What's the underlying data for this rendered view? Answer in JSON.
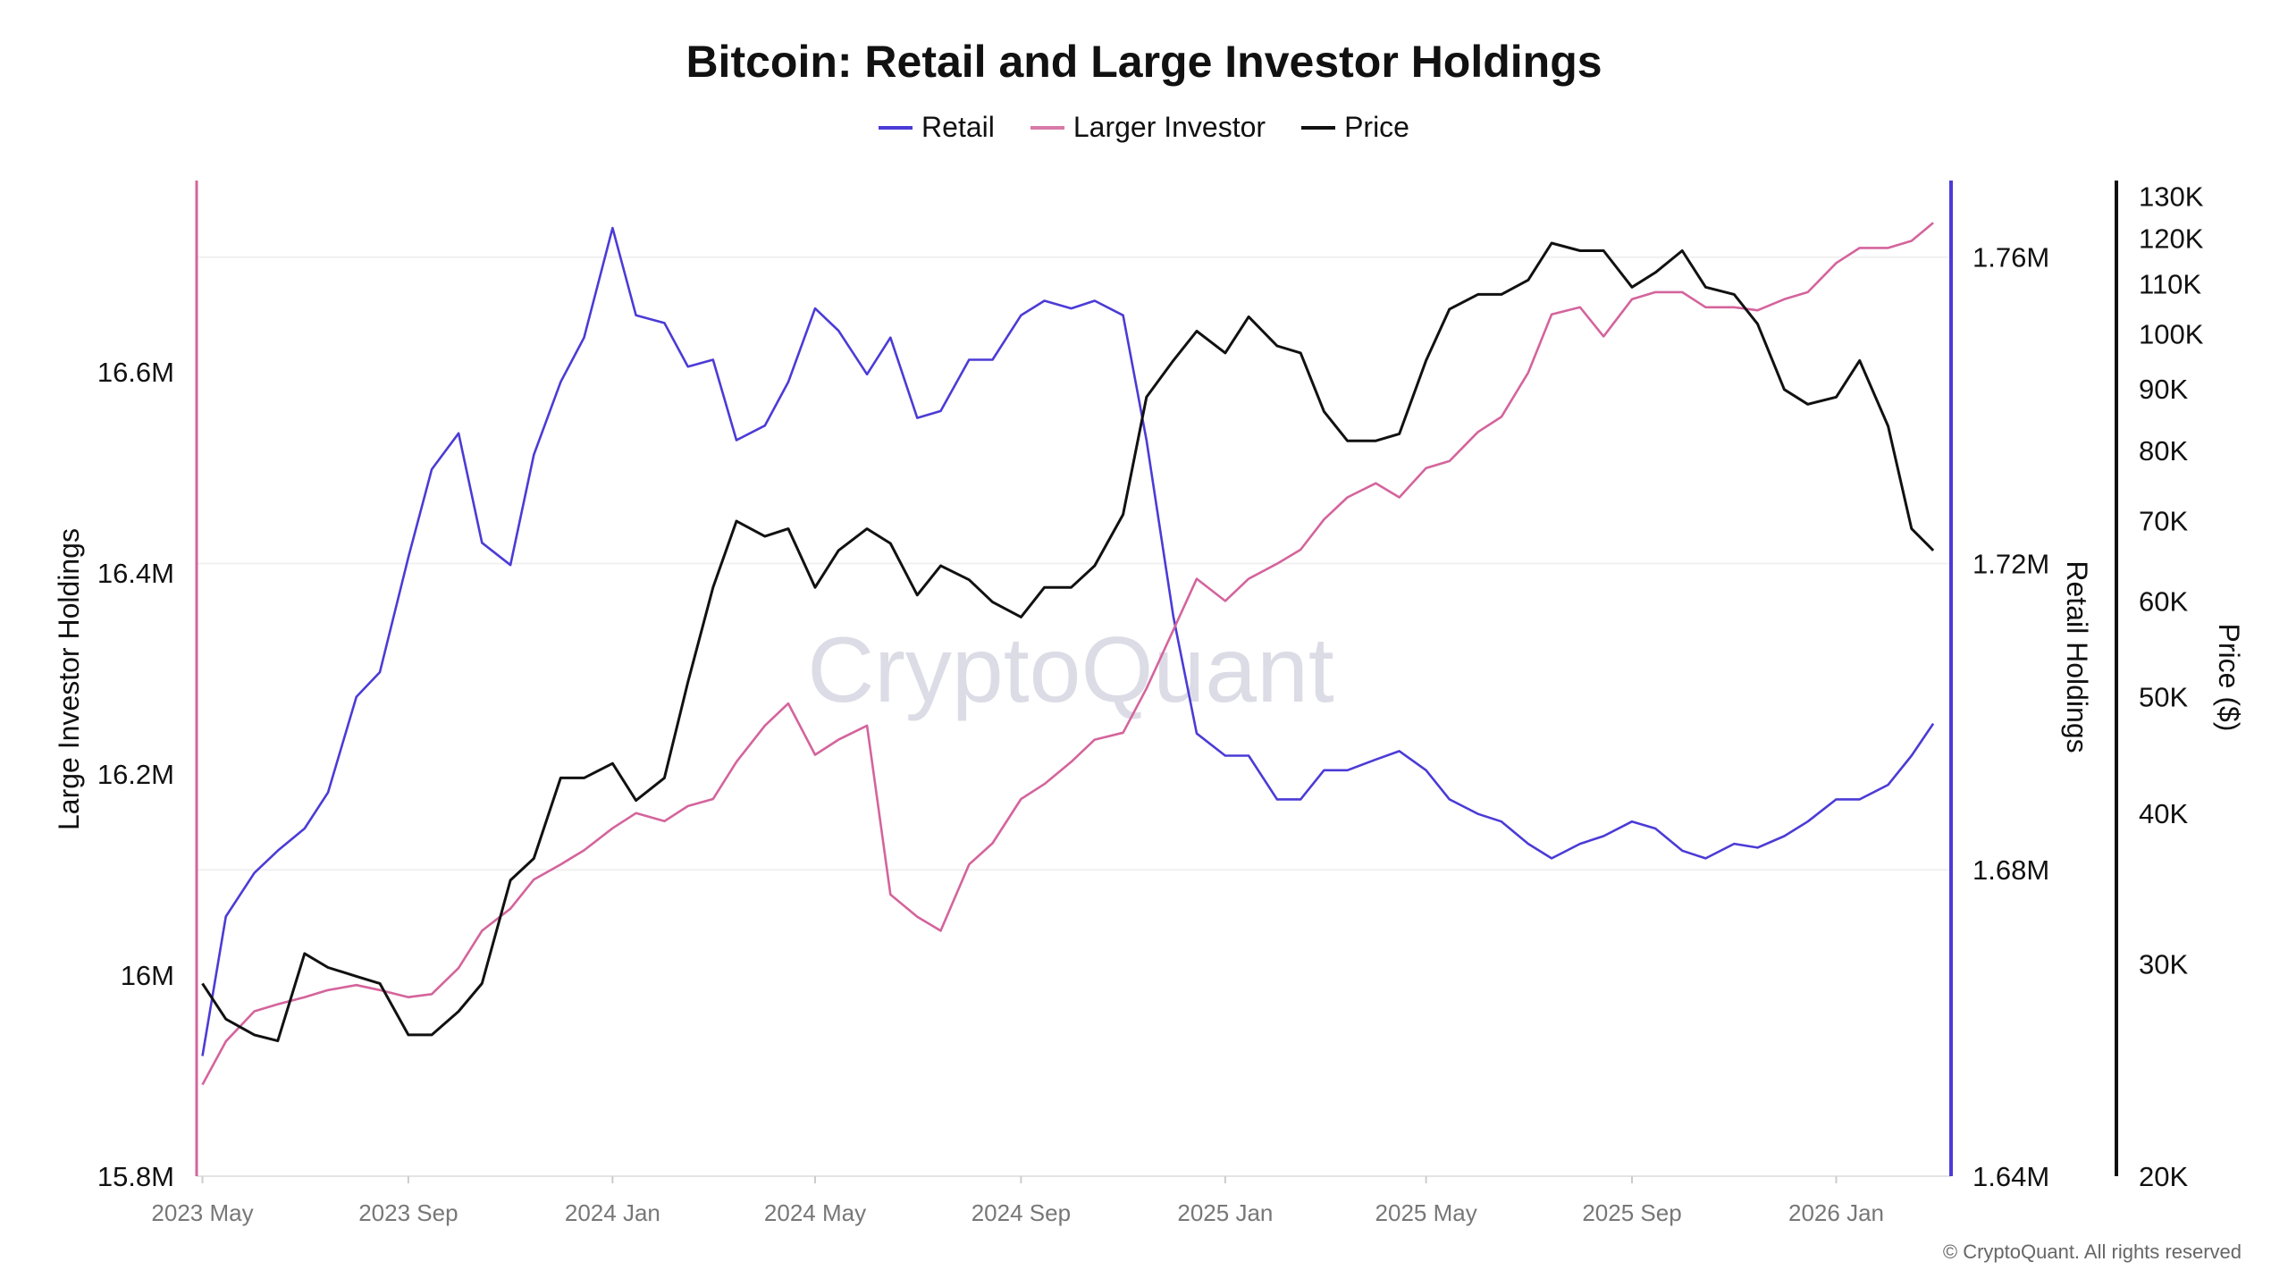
{
  "chart_data": {
    "type": "line",
    "title": "Bitcoin: Retail and Large Investor Holdings",
    "legend_placement": "top-center",
    "grid": "horizontal",
    "watermark": "CryptoQuant",
    "copyright": "© CryptoQuant. All rights reserved",
    "x_axis": {
      "type": "date",
      "range": [
        "2023-04-28",
        "2026-03-02"
      ],
      "ticks": [
        {
          "label": "2023 May",
          "date": "2023-05-01"
        },
        {
          "label": "2023 Sep",
          "date": "2023-09-01"
        },
        {
          "label": "2024 Jan",
          "date": "2024-01-01"
        },
        {
          "label": "2024 May",
          "date": "2024-05-01"
        },
        {
          "label": "2024 Sep",
          "date": "2024-09-01"
        },
        {
          "label": "2025 Jan",
          "date": "2025-01-01"
        },
        {
          "label": "2025 May",
          "date": "2025-05-01"
        },
        {
          "label": "2025 Sep",
          "date": "2025-09-01"
        },
        {
          "label": "2026 Jan",
          "date": "2026-01-01"
        }
      ]
    },
    "y_axes": {
      "left": {
        "label": "Large Investor Holdings",
        "range": [
          15.8,
          16.79
        ],
        "unit": "M",
        "color": "#d4649c",
        "ticks": [
          {
            "v": 15.8,
            "label": "15.8M"
          },
          {
            "v": 16.0,
            "label": "16M"
          },
          {
            "v": 16.2,
            "label": "16.2M"
          },
          {
            "v": 16.4,
            "label": "16.4M"
          },
          {
            "v": 16.6,
            "label": "16.6M"
          }
        ]
      },
      "right1": {
        "label": "Retail Holdings",
        "range": [
          1.64,
          1.77
        ],
        "unit": "M",
        "color": "#4b3bd6",
        "ticks": [
          {
            "v": 1.64,
            "label": "1.64M"
          },
          {
            "v": 1.68,
            "label": "1.68M"
          },
          {
            "v": 1.72,
            "label": "1.72M"
          },
          {
            "v": 1.76,
            "label": "1.76M"
          }
        ]
      },
      "right2": {
        "label": "Price ($)",
        "range": [
          20000,
          134000
        ],
        "scale": "log",
        "color": "#111111",
        "ticks": [
          {
            "v": 20000,
            "label": "20K"
          },
          {
            "v": 30000,
            "label": "30K"
          },
          {
            "v": 40000,
            "label": "40K"
          },
          {
            "v": 50000,
            "label": "50K"
          },
          {
            "v": 60000,
            "label": "60K"
          },
          {
            "v": 70000,
            "label": "70K"
          },
          {
            "v": 80000,
            "label": "80K"
          },
          {
            "v": 90000,
            "label": "90K"
          },
          {
            "v": 100000,
            "label": "100K"
          },
          {
            "v": 110000,
            "label": "110K"
          },
          {
            "v": 120000,
            "label": "120K"
          },
          {
            "v": 130000,
            "label": "130K"
          }
        ]
      }
    },
    "dates": [
      "2023-05-01",
      "2023-05-15",
      "2023-06-01",
      "2023-06-15",
      "2023-07-01",
      "2023-07-15",
      "2023-08-01",
      "2023-08-15",
      "2023-09-01",
      "2023-09-15",
      "2023-10-01",
      "2023-10-15",
      "2023-11-01",
      "2023-11-15",
      "2023-12-01",
      "2023-12-15",
      "2024-01-01",
      "2024-01-15",
      "2024-02-01",
      "2024-02-15",
      "2024-03-01",
      "2024-03-15",
      "2024-04-01",
      "2024-04-15",
      "2024-05-01",
      "2024-05-15",
      "2024-06-01",
      "2024-06-15",
      "2024-07-01",
      "2024-07-15",
      "2024-08-01",
      "2024-08-15",
      "2024-09-01",
      "2024-09-15",
      "2024-10-01",
      "2024-10-15",
      "2024-11-01",
      "2024-11-15",
      "2024-12-01",
      "2024-12-15",
      "2025-01-01",
      "2025-01-15",
      "2025-02-01",
      "2025-02-15",
      "2025-03-01",
      "2025-03-15",
      "2025-04-01",
      "2025-04-15",
      "2025-05-01",
      "2025-05-15",
      "2025-06-01",
      "2025-06-15",
      "2025-07-01",
      "2025-07-15",
      "2025-08-01",
      "2025-08-15",
      "2025-09-01",
      "2025-09-15",
      "2025-10-01",
      "2025-10-15",
      "2025-11-01",
      "2025-11-15",
      "2025-12-01",
      "2025-12-15",
      "2026-01-01",
      "2026-01-15",
      "2026-02-01",
      "2026-02-15",
      "2026-02-28"
    ],
    "series": [
      {
        "name": "Retail",
        "axis": "right1",
        "color": "#4b3bd6",
        "unit": "M",
        "values": [
          1.6557,
          1.6739,
          1.6796,
          1.6825,
          1.6854,
          1.6901,
          1.7026,
          1.7058,
          1.7208,
          1.7323,
          1.737,
          1.7227,
          1.7198,
          1.7342,
          1.7437,
          1.7495,
          1.7638,
          1.7524,
          1.7514,
          1.7457,
          1.7466,
          1.7361,
          1.738,
          1.7437,
          1.7533,
          1.7504,
          1.7447,
          1.7495,
          1.739,
          1.7399,
          1.7466,
          1.7466,
          1.7524,
          1.7543,
          1.7533,
          1.7543,
          1.7524,
          1.7361,
          1.7131,
          1.6978,
          1.6949,
          1.6949,
          1.6892,
          1.6892,
          1.693,
          1.693,
          1.6944,
          1.6955,
          1.693,
          1.6892,
          1.6873,
          1.6863,
          1.6834,
          1.6815,
          1.6834,
          1.6844,
          1.6863,
          1.6854,
          1.6825,
          1.6815,
          1.6834,
          1.6829,
          1.6844,
          1.6863,
          1.6892,
          1.6892,
          1.6911,
          1.6949,
          1.6991
        ]
      },
      {
        "name": "Larger Investor",
        "axis": "left",
        "color": "#d4649c",
        "unit": "M",
        "values": [
          15.891,
          15.934,
          15.964,
          15.971,
          15.978,
          15.985,
          15.99,
          15.985,
          15.978,
          15.981,
          16.007,
          16.044,
          16.066,
          16.095,
          16.11,
          16.124,
          16.146,
          16.161,
          16.153,
          16.168,
          16.175,
          16.212,
          16.248,
          16.27,
          16.219,
          16.234,
          16.248,
          16.08,
          16.058,
          16.044,
          16.11,
          16.131,
          16.175,
          16.19,
          16.212,
          16.234,
          16.241,
          16.285,
          16.343,
          16.394,
          16.372,
          16.394,
          16.409,
          16.423,
          16.453,
          16.475,
          16.489,
          16.475,
          16.504,
          16.511,
          16.54,
          16.555,
          16.599,
          16.657,
          16.664,
          16.635,
          16.672,
          16.679,
          16.679,
          16.664,
          16.664,
          16.661,
          16.672,
          16.679,
          16.708,
          16.723,
          16.723,
          16.73,
          16.748
        ]
      },
      {
        "name": "Price",
        "axis": "right2",
        "color": "#111111",
        "unit": "$",
        "values": [
          28900,
          27000,
          26200,
          25900,
          30600,
          29800,
          29300,
          28900,
          26200,
          26200,
          27400,
          28900,
          35200,
          36700,
          42800,
          42800,
          44000,
          41000,
          42800,
          51400,
          61600,
          69900,
          67900,
          68900,
          61600,
          66100,
          68900,
          67000,
          60700,
          64200,
          62500,
          59900,
          58200,
          61600,
          61600,
          64200,
          70800,
          88600,
          95000,
          100500,
          96400,
          103300,
          97700,
          96400,
          86200,
          81500,
          81500,
          82600,
          95000,
          104800,
          107800,
          107800,
          110800,
          118900,
          117200,
          117200,
          109300,
          112400,
          117200,
          109300,
          107800,
          101900,
          89900,
          87400,
          88600,
          95000,
          83800,
          68900,
          66100
        ]
      }
    ]
  }
}
